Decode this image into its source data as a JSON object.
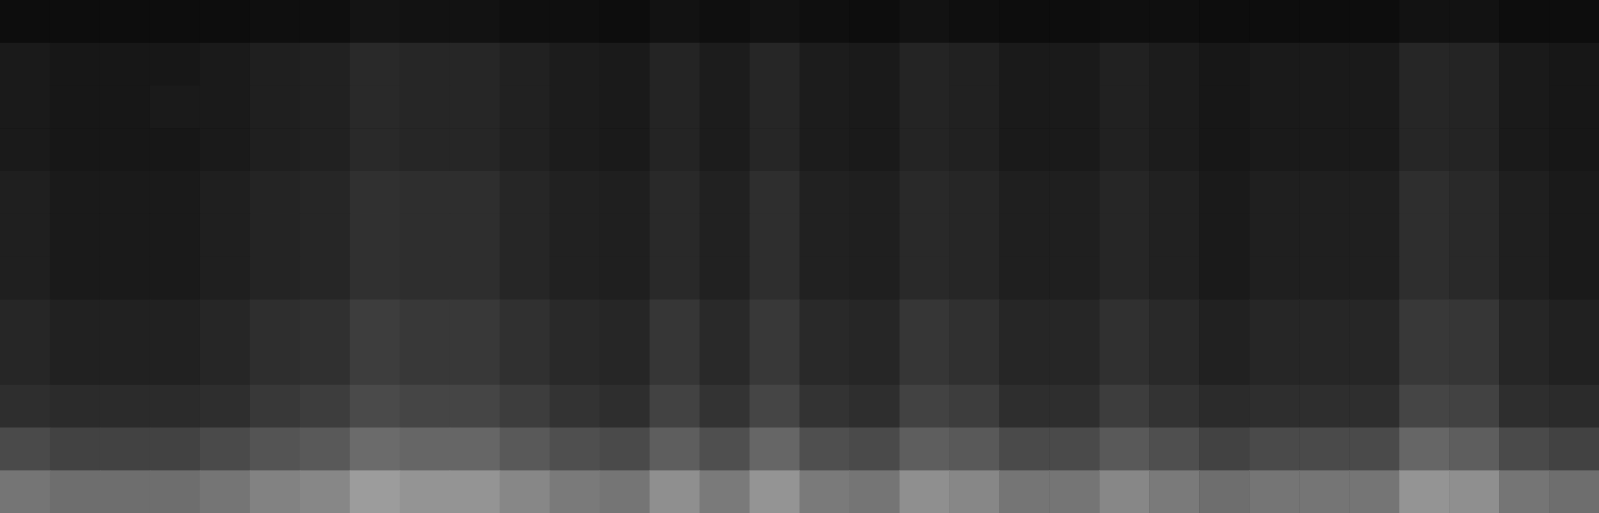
{
  "chart_data": {
    "type": "spectrogram",
    "tick_labels": false,
    "color_range": [
      0,
      1
    ],
    "cells": [
      [
        0.05,
        0.05,
        0.05,
        0.05,
        0.05,
        0.06,
        0.06,
        0.08,
        0.07,
        0.07,
        0.06,
        0.06,
        0.05,
        0.07,
        0.06,
        0.07,
        0.06,
        0.05,
        0.07,
        0.06,
        0.05,
        0.05,
        0.06,
        0.06,
        0.05,
        0.05,
        0.05,
        0.05,
        0.07,
        0.07,
        0.05,
        0.05
      ],
      [
        0.1,
        0.09,
        0.09,
        0.09,
        0.1,
        0.12,
        0.13,
        0.16,
        0.15,
        0.15,
        0.13,
        0.11,
        0.1,
        0.14,
        0.11,
        0.15,
        0.11,
        0.1,
        0.14,
        0.13,
        0.1,
        0.1,
        0.13,
        0.11,
        0.09,
        0.1,
        0.1,
        0.1,
        0.15,
        0.14,
        0.1,
        0.09
      ],
      [
        0.1,
        0.09,
        0.09,
        0.1,
        0.1,
        0.12,
        0.13,
        0.16,
        0.15,
        0.15,
        0.13,
        0.11,
        0.1,
        0.14,
        0.11,
        0.15,
        0.11,
        0.1,
        0.14,
        0.13,
        0.1,
        0.1,
        0.13,
        0.11,
        0.09,
        0.1,
        0.1,
        0.1,
        0.15,
        0.14,
        0.1,
        0.09
      ],
      [
        0.1,
        0.09,
        0.09,
        0.09,
        0.1,
        0.12,
        0.13,
        0.16,
        0.15,
        0.15,
        0.13,
        0.11,
        0.1,
        0.14,
        0.11,
        0.15,
        0.11,
        0.1,
        0.14,
        0.13,
        0.1,
        0.1,
        0.13,
        0.11,
        0.09,
        0.1,
        0.1,
        0.1,
        0.15,
        0.14,
        0.1,
        0.09
      ],
      [
        0.12,
        0.1,
        0.1,
        0.1,
        0.12,
        0.14,
        0.15,
        0.19,
        0.18,
        0.18,
        0.15,
        0.13,
        0.12,
        0.16,
        0.13,
        0.18,
        0.13,
        0.12,
        0.16,
        0.15,
        0.12,
        0.12,
        0.15,
        0.13,
        0.1,
        0.12,
        0.12,
        0.12,
        0.18,
        0.16,
        0.12,
        0.1
      ],
      [
        0.12,
        0.1,
        0.1,
        0.1,
        0.12,
        0.14,
        0.15,
        0.19,
        0.18,
        0.18,
        0.15,
        0.13,
        0.12,
        0.16,
        0.13,
        0.18,
        0.13,
        0.12,
        0.16,
        0.15,
        0.12,
        0.12,
        0.15,
        0.13,
        0.1,
        0.12,
        0.12,
        0.12,
        0.18,
        0.16,
        0.12,
        0.1
      ],
      [
        0.12,
        0.1,
        0.1,
        0.1,
        0.12,
        0.14,
        0.15,
        0.19,
        0.18,
        0.18,
        0.15,
        0.13,
        0.12,
        0.16,
        0.13,
        0.18,
        0.13,
        0.12,
        0.16,
        0.15,
        0.12,
        0.12,
        0.15,
        0.13,
        0.1,
        0.12,
        0.12,
        0.12,
        0.18,
        0.16,
        0.12,
        0.1
      ],
      [
        0.15,
        0.13,
        0.13,
        0.13,
        0.15,
        0.18,
        0.19,
        0.24,
        0.22,
        0.22,
        0.19,
        0.16,
        0.15,
        0.21,
        0.16,
        0.22,
        0.16,
        0.15,
        0.21,
        0.19,
        0.15,
        0.15,
        0.19,
        0.16,
        0.13,
        0.15,
        0.15,
        0.15,
        0.22,
        0.21,
        0.15,
        0.13
      ],
      [
        0.15,
        0.13,
        0.13,
        0.13,
        0.15,
        0.18,
        0.19,
        0.24,
        0.22,
        0.22,
        0.19,
        0.16,
        0.15,
        0.21,
        0.16,
        0.22,
        0.16,
        0.15,
        0.21,
        0.19,
        0.15,
        0.15,
        0.19,
        0.16,
        0.13,
        0.15,
        0.15,
        0.15,
        0.22,
        0.21,
        0.15,
        0.13
      ],
      [
        0.18,
        0.17,
        0.17,
        0.17,
        0.18,
        0.22,
        0.24,
        0.29,
        0.27,
        0.27,
        0.24,
        0.2,
        0.18,
        0.26,
        0.2,
        0.27,
        0.2,
        0.18,
        0.26,
        0.24,
        0.18,
        0.18,
        0.24,
        0.2,
        0.17,
        0.18,
        0.18,
        0.18,
        0.27,
        0.26,
        0.18,
        0.17
      ],
      [
        0.29,
        0.26,
        0.26,
        0.26,
        0.29,
        0.33,
        0.35,
        0.42,
        0.4,
        0.4,
        0.35,
        0.31,
        0.29,
        0.37,
        0.31,
        0.4,
        0.31,
        0.29,
        0.37,
        0.35,
        0.29,
        0.29,
        0.35,
        0.31,
        0.26,
        0.29,
        0.29,
        0.29,
        0.4,
        0.37,
        0.29,
        0.26
      ],
      [
        0.46,
        0.43,
        0.43,
        0.43,
        0.46,
        0.51,
        0.53,
        0.61,
        0.58,
        0.58,
        0.53,
        0.48,
        0.46,
        0.56,
        0.48,
        0.58,
        0.48,
        0.46,
        0.56,
        0.53,
        0.46,
        0.46,
        0.53,
        0.48,
        0.43,
        0.46,
        0.46,
        0.46,
        0.58,
        0.56,
        0.46,
        0.43
      ]
    ]
  }
}
